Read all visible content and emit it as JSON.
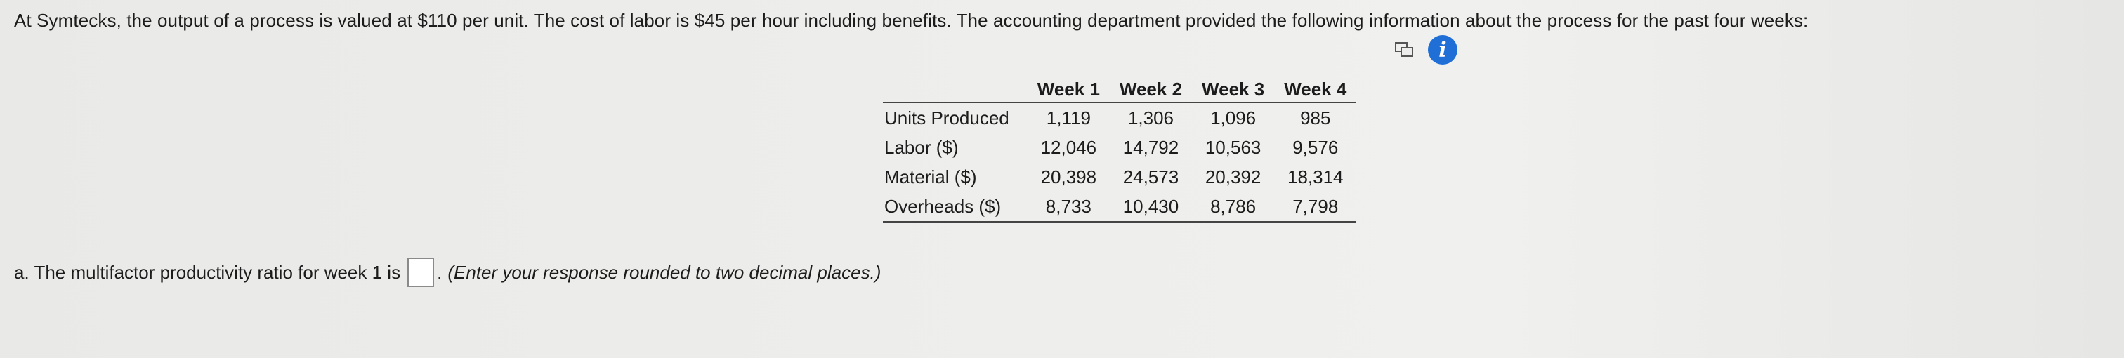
{
  "problem_text": "At Symtecks, the output of a process is valued at $110 per unit. The cost of labor is $45 per hour including benefits. The accounting department provided the following information about the process for the past four weeks:",
  "table": {
    "headers": [
      "Week 1",
      "Week 2",
      "Week 3",
      "Week 4"
    ],
    "rows": [
      {
        "label": "Units Produced",
        "values": [
          "1,119",
          "1,306",
          "1,096",
          "985"
        ]
      },
      {
        "label": "Labor ($)",
        "values": [
          "12,046",
          "14,792",
          "10,563",
          "9,576"
        ]
      },
      {
        "label": "Material ($)",
        "values": [
          "20,398",
          "24,573",
          "20,392",
          "18,314"
        ]
      },
      {
        "label": "Overheads ($)",
        "values": [
          "8,733",
          "10,430",
          "8,786",
          "7,798"
        ]
      }
    ]
  },
  "question": {
    "prefix": "a. The multifactor productivity ratio for week 1 is",
    "suffix": ".",
    "hint": "(Enter your response rounded to two decimal places.)",
    "answer_value": ""
  },
  "icons": {
    "copy": "copy-icon",
    "info": "info-icon",
    "info_color": "#1f6fd6"
  }
}
